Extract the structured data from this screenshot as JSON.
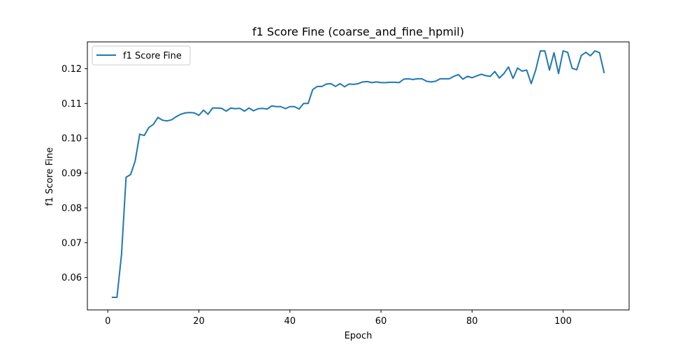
{
  "chart_data": {
    "type": "line",
    "title": "f1 Score Fine (coarse_and_fine_hpmil)",
    "xlabel": "Epoch",
    "ylabel": "f1 Score Fine",
    "xlim": [
      -4.5,
      114.5
    ],
    "ylim": [
      0.0507,
      0.1277
    ],
    "xticks": [
      0,
      20,
      40,
      60,
      80,
      100
    ],
    "yticks": [
      0.06,
      0.07,
      0.08,
      0.09,
      0.1,
      0.11,
      0.12
    ],
    "ytick_labels": [
      "0.06",
      "0.07",
      "0.08",
      "0.09",
      "0.10",
      "0.11",
      "0.12"
    ],
    "grid": false,
    "legend_position": "upper-left",
    "series": [
      {
        "name": "f1 Score Fine",
        "color": "#1f77b4",
        "x": [
          1,
          2,
          3,
          4,
          5,
          6,
          7,
          8,
          9,
          10,
          11,
          12,
          13,
          14,
          15,
          16,
          17,
          18,
          19,
          20,
          21,
          22,
          23,
          24,
          25,
          26,
          27,
          28,
          29,
          30,
          31,
          32,
          33,
          34,
          35,
          36,
          37,
          38,
          39,
          40,
          41,
          42,
          43,
          44,
          45,
          46,
          47,
          48,
          49,
          50,
          51,
          52,
          53,
          54,
          55,
          56,
          57,
          58,
          59,
          60,
          61,
          62,
          63,
          64,
          65,
          66,
          67,
          68,
          69,
          70,
          71,
          72,
          73,
          74,
          75,
          76,
          77,
          78,
          79,
          80,
          81,
          82,
          83,
          84,
          85,
          86,
          87,
          88,
          89,
          90,
          91,
          92,
          93,
          94,
          95,
          96,
          97,
          98,
          99,
          100,
          101,
          102,
          103,
          104,
          105,
          106,
          107,
          108,
          109
        ],
        "values": [
          0.0543,
          0.0543,
          0.0666,
          0.0888,
          0.0896,
          0.0935,
          0.1012,
          0.1008,
          0.1031,
          0.104,
          0.106,
          0.1052,
          0.105,
          0.1053,
          0.1062,
          0.1069,
          0.1073,
          0.1074,
          0.1073,
          0.1066,
          0.1081,
          0.1069,
          0.1087,
          0.1087,
          0.1086,
          0.1078,
          0.1087,
          0.1085,
          0.1086,
          0.1078,
          0.1087,
          0.1079,
          0.1085,
          0.1086,
          0.1084,
          0.1093,
          0.1091,
          0.1091,
          0.1085,
          0.1091,
          0.1091,
          0.1084,
          0.11,
          0.11,
          0.114,
          0.1149,
          0.1149,
          0.1156,
          0.1157,
          0.1149,
          0.1157,
          0.1148,
          0.1156,
          0.1155,
          0.1157,
          0.1162,
          0.1163,
          0.116,
          0.1162,
          0.116,
          0.116,
          0.1161,
          0.1161,
          0.116,
          0.117,
          0.1171,
          0.1169,
          0.1171,
          0.1171,
          0.1164,
          0.1162,
          0.1164,
          0.1171,
          0.1171,
          0.1171,
          0.1178,
          0.1183,
          0.117,
          0.1178,
          0.1174,
          0.1179,
          0.1184,
          0.118,
          0.1178,
          0.1192,
          0.1173,
          0.1186,
          0.1205,
          0.1172,
          0.1202,
          0.1193,
          0.1196,
          0.1157,
          0.1197,
          0.1251,
          0.1251,
          0.1196,
          0.1246,
          0.1186,
          0.1251,
          0.1247,
          0.1201,
          0.1197,
          0.1238,
          0.1247,
          0.1237,
          0.1251,
          0.1246,
          0.1189
        ]
      }
    ]
  }
}
